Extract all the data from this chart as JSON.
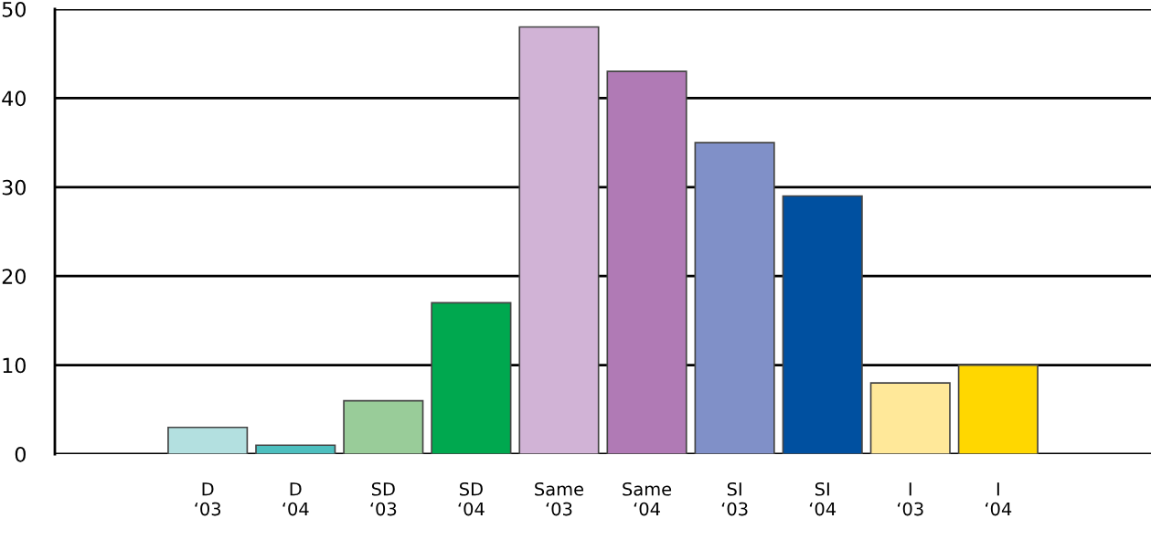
{
  "chart_data": {
    "type": "bar",
    "categories": [
      "D\n‘03",
      "D\n‘04",
      "SD\n‘03",
      "SD\n‘04",
      "Same\n‘03",
      "Same\n‘04",
      "SI\n‘03",
      "SI\n‘04",
      "I\n‘03",
      "I\n‘04"
    ],
    "values": [
      3,
      1,
      6,
      17,
      48,
      43,
      35,
      29,
      8,
      10
    ],
    "colors": [
      "#b3e0e0",
      "#4dbfbf",
      "#99cc99",
      "#00a84f",
      "#d1b3d6",
      "#b07ab5",
      "#8090c8",
      "#0050a0",
      "#ffe899",
      "#ffd700"
    ],
    "ylim": [
      0,
      50
    ],
    "yticks": [
      0,
      10,
      20,
      30,
      40,
      50
    ],
    "grid": "y",
    "legend": false
  }
}
